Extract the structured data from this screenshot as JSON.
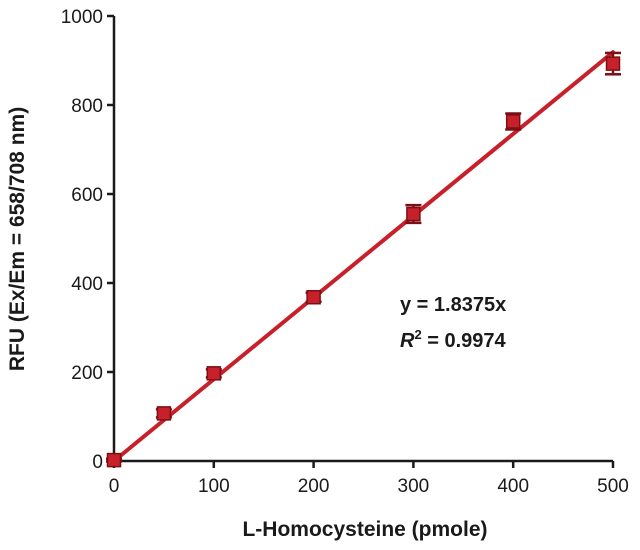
{
  "chart_data": {
    "type": "scatter",
    "title": "",
    "xlabel": "L-Homocysteine (pmole)",
    "ylabel": "RFU (Ex/Em = 658/708 nm)",
    "xlim": [
      0,
      500
    ],
    "ylim": [
      0,
      1000
    ],
    "x_ticks": [
      "0",
      "100",
      "200",
      "300",
      "400",
      "500"
    ],
    "y_ticks": [
      "0",
      "200",
      "400",
      "600",
      "800",
      "1000"
    ],
    "grid": false,
    "series": [
      {
        "x": [
          0,
          50,
          100,
          200,
          300,
          400,
          500
        ],
        "y": [
          2,
          107,
          197,
          368,
          555,
          763,
          893
        ],
        "error": [
          3,
          9,
          9,
          10,
          20,
          18,
          24
        ]
      }
    ],
    "fit": {
      "type": "linear",
      "slope": 1.8375,
      "intercept": 0,
      "equation": "y = 1.8375x",
      "r2_symbol": "R",
      "r2_sup": "2",
      "r2_value": " = 0.9974"
    },
    "colors": {
      "marker": "#c8202a",
      "marker_edge": "#7a1015",
      "fit_line": "#c8202a",
      "axis": "#1a1a1a"
    }
  }
}
